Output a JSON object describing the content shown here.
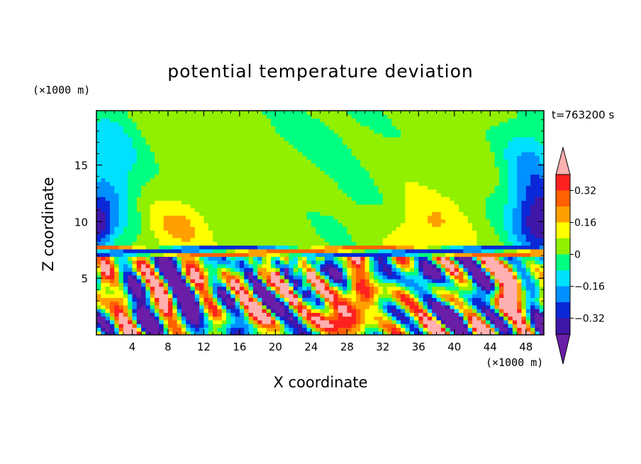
{
  "chart_data": {
    "type": "heatmap",
    "title": "potential temperature deviation",
    "xlabel": "X coordinate",
    "ylabel": "Z coordinate",
    "x_unit": "(×1000 m)",
    "y_unit": "(×1000 m)",
    "time_label": "t=763200 s",
    "xlim": [
      0,
      50
    ],
    "ylim": [
      0,
      19.8
    ],
    "x_ticks": [
      4,
      8,
      12,
      16,
      20,
      24,
      28,
      32,
      36,
      40,
      44,
      48
    ],
    "y_ticks": [
      5,
      10,
      15
    ],
    "colorbar": {
      "tick_labels": [
        "0.32",
        "0.16",
        "0",
        "−0.16",
        "−0.32"
      ],
      "tick_values": [
        0.32,
        0.16,
        0,
        -0.16,
        -0.32
      ],
      "levels": [
        -0.4,
        -0.32,
        -0.24,
        -0.16,
        -0.08,
        0,
        0.08,
        0.16,
        0.24,
        0.32,
        0.4
      ],
      "colors": [
        "#6a1ea8",
        "#3f16a8",
        "#0a28d8",
        "#0090ff",
        "#00e0ff",
        "#00ff80",
        "#90f000",
        "#ffff00",
        "#ffa000",
        "#ff6000",
        "#ff2020",
        "#ffb0b0"
      ],
      "extend": "both"
    }
  }
}
